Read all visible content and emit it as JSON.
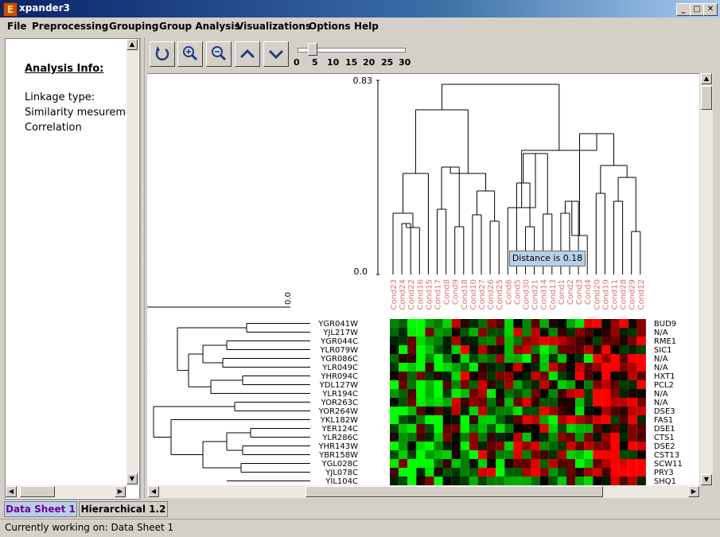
{
  "window": {
    "title": "xpander3",
    "icon": "expander-app-icon"
  },
  "menu": [
    "File",
    "Preprocessing",
    "Grouping",
    "Group Analysis",
    "Visualizations",
    "Options",
    "Help"
  ],
  "analysis_info": {
    "title": "Analysis Info:",
    "lines": [
      "Linkage type:",
      "Similarity mesureme",
      "Correlation"
    ]
  },
  "toolbar": {
    "buttons": [
      "refresh-icon",
      "zoom-in-icon",
      "zoom-out-icon",
      "chevron-up-icon",
      "chevron-down-icon"
    ],
    "slider_ticks": [
      "0",
      "5",
      "10",
      "15",
      "20",
      "25",
      "30"
    ],
    "slider_value": 5
  },
  "dendrogram": {
    "y_max_label": "0.83",
    "y_min_label": "0.0",
    "row_axis_label": "0.0",
    "tooltip": "Distance is 0.18",
    "conditions": [
      "Cond23",
      "Cond24",
      "Cond22",
      "Cond16",
      "Cond15",
      "Cond17",
      "Cond8",
      "Cond9",
      "Cond18",
      "Cond10",
      "Cond27",
      "Cond26",
      "Cond25",
      "Cond6",
      "Cond5",
      "Cond30",
      "Cond21",
      "Cond14",
      "Cond13",
      "Cond1",
      "Cond2",
      "Cond3",
      "Cond4",
      "Cond20",
      "Cond19",
      "Cond11",
      "Cond28",
      "Cond29",
      "Cond12"
    ]
  },
  "heatmap": {
    "genes": [
      "YGR041W",
      "YJL217W",
      "YGR044C",
      "YLR079W",
      "YGR086C",
      "YLR049C",
      "YHR094C",
      "YDL127W",
      "YLR194C",
      "YOR263C",
      "YOR264W",
      "YKL182W",
      "YER124C",
      "YLR286C",
      "YHR143W",
      "YBR158W",
      "YGL028C",
      "YJL078C",
      "YIL104C"
    ],
    "annotations": [
      "BUD9",
      "N/A",
      "RME1",
      "SIC1",
      "N/A",
      "N/A",
      "HXT1",
      "PCL2",
      "N/A",
      "N/A",
      "DSE3",
      "FAS1",
      "DSE1",
      "CTS1",
      "DSE2",
      "CST13",
      "SCW11",
      "PRY3",
      "SHQ1"
    ],
    "colors": {
      "up": "#ff0000",
      "down": "#00ff00",
      "neutral": "#000000"
    }
  },
  "tabs": [
    {
      "label": "Data Sheet 1",
      "active": true
    },
    {
      "label": "Hierarchical 1.2",
      "active": false
    }
  ],
  "status": "Currently working on: Data Sheet 1"
}
